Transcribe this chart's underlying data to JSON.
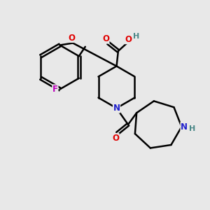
{
  "bg_color": "#e8e8e8",
  "bond_color": "#000000",
  "bond_width": 1.8,
  "atom_colors": {
    "O": "#e00000",
    "N": "#2020cc",
    "F": "#bb00bb",
    "H": "#4a8888",
    "C": "#000000"
  },
  "font_size_atom": 8.5,
  "font_size_H": 8.0
}
